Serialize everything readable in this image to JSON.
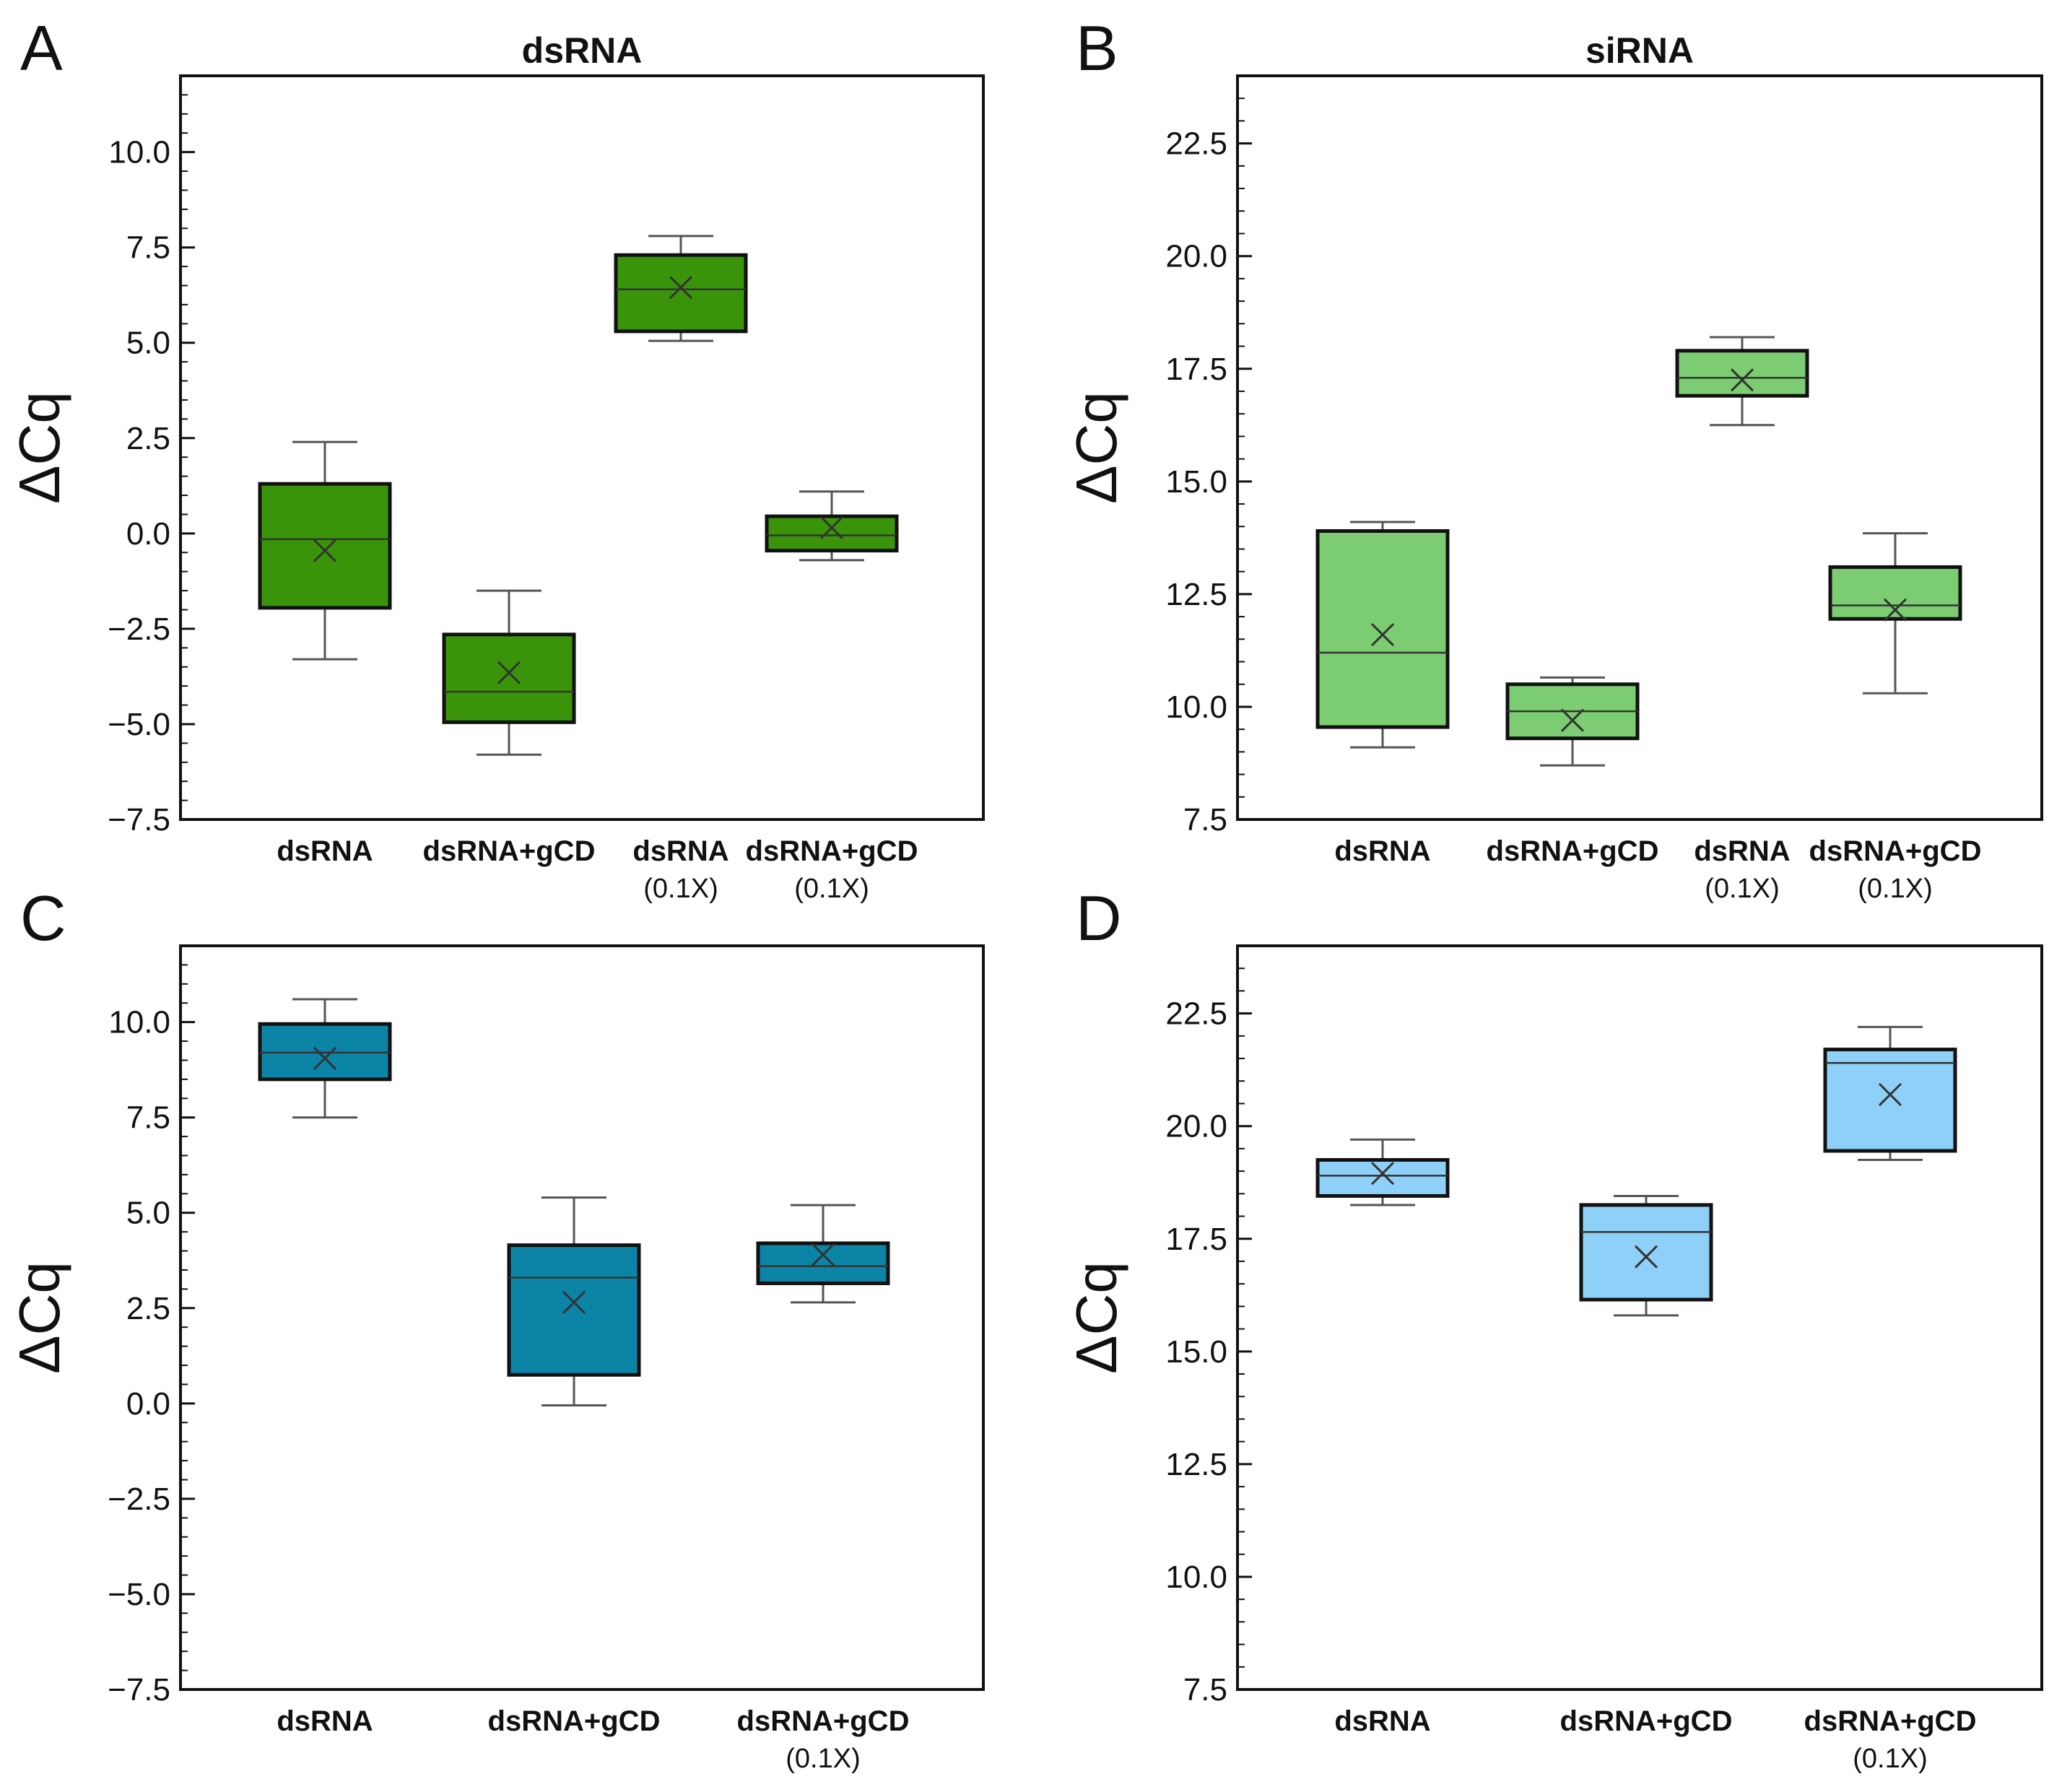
{
  "chart_data": [
    {
      "panel": "A",
      "type": "box",
      "title": "dsRNA",
      "ylabel": "ΔCq",
      "xlabel": "",
      "ylim": [
        -7.5,
        12
      ],
      "yticks": [
        -7.5,
        -5.0,
        -2.5,
        0.0,
        2.5,
        5.0,
        7.5,
        10.0
      ],
      "yticklabels": [
        "−7.5",
        "−5.0",
        "−2.5",
        "0.0",
        "2.5",
        "5.0",
        "7.5",
        "10.0"
      ],
      "color": "#3a940a",
      "categories": [
        {
          "label": "dsRNA",
          "sub": ""
        },
        {
          "label": "dsRNA+gCD",
          "sub": ""
        },
        {
          "label": "dsRNA",
          "sub": "(0.1X)"
        },
        {
          "label": "dsRNA+gCD",
          "sub": "(0.1X)"
        }
      ],
      "boxes": [
        {
          "min": -3.3,
          "q1": -1.95,
          "median": -0.15,
          "q3": 1.3,
          "max": 2.4,
          "mean": -0.45
        },
        {
          "min": -5.8,
          "q1": -4.95,
          "median": -4.15,
          "q3": -2.65,
          "max": -1.5,
          "mean": -3.65
        },
        {
          "min": 5.05,
          "q1": 5.3,
          "median": 6.4,
          "q3": 7.3,
          "max": 7.8,
          "mean": 6.45
        },
        {
          "min": -0.7,
          "q1": -0.45,
          "median": -0.05,
          "q3": 0.45,
          "max": 1.1,
          "mean": 0.15
        }
      ]
    },
    {
      "panel": "B",
      "type": "box",
      "title": "siRNA",
      "ylabel": "ΔCq",
      "xlabel": "",
      "ylim": [
        7.5,
        24
      ],
      "yticks": [
        7.5,
        10.0,
        12.5,
        15.0,
        17.5,
        20.0,
        22.5
      ],
      "yticklabels": [
        "7.5",
        "10.0",
        "12.5",
        "15.0",
        "17.5",
        "20.0",
        "22.5"
      ],
      "color": "#7ccc72",
      "categories": [
        {
          "label": "dsRNA",
          "sub": ""
        },
        {
          "label": "dsRNA+gCD",
          "sub": ""
        },
        {
          "label": "dsRNA",
          "sub": "(0.1X)"
        },
        {
          "label": "dsRNA+gCD",
          "sub": "(0.1X)"
        }
      ],
      "boxes": [
        {
          "min": 9.1,
          "q1": 9.55,
          "median": 11.2,
          "q3": 13.9,
          "max": 14.1,
          "mean": 11.6
        },
        {
          "min": 8.7,
          "q1": 9.3,
          "median": 9.9,
          "q3": 10.5,
          "max": 10.65,
          "mean": 9.7
        },
        {
          "min": 16.25,
          "q1": 16.9,
          "median": 17.3,
          "q3": 17.9,
          "max": 18.2,
          "mean": 17.25
        },
        {
          "min": 10.3,
          "q1": 11.95,
          "median": 12.25,
          "q3": 13.1,
          "max": 13.85,
          "mean": 12.15
        }
      ]
    },
    {
      "panel": "C",
      "type": "box",
      "title": "",
      "ylabel": "ΔCq",
      "xlabel": "",
      "ylim": [
        -7.5,
        12
      ],
      "yticks": [
        -7.5,
        -5.0,
        -2.5,
        0.0,
        2.5,
        5.0,
        7.5,
        10.0
      ],
      "yticklabels": [
        "−7.5",
        "−5.0",
        "−2.5",
        "0.0",
        "2.5",
        "5.0",
        "7.5",
        "10.0"
      ],
      "color": "#0b84a5",
      "categories": [
        {
          "label": "dsRNA",
          "sub": ""
        },
        {
          "label": "dsRNA+gCD",
          "sub": ""
        },
        {
          "label": "dsRNA+gCD",
          "sub": "(0.1X)"
        }
      ],
      "boxes": [
        {
          "min": 7.5,
          "q1": 8.5,
          "median": 9.2,
          "q3": 9.95,
          "max": 10.6,
          "mean": 9.05
        },
        {
          "min": -0.05,
          "q1": 0.75,
          "median": 3.3,
          "q3": 4.15,
          "max": 5.4,
          "mean": 2.65
        },
        {
          "min": 2.65,
          "q1": 3.15,
          "median": 3.6,
          "q3": 4.2,
          "max": 5.2,
          "mean": 3.9
        }
      ]
    },
    {
      "panel": "D",
      "type": "box",
      "title": "",
      "ylabel": "ΔCq",
      "xlabel": "",
      "ylim": [
        7.5,
        24
      ],
      "yticks": [
        7.5,
        10.0,
        12.5,
        15.0,
        17.5,
        20.0,
        22.5
      ],
      "yticklabels": [
        "7.5",
        "10.0",
        "12.5",
        "15.0",
        "17.5",
        "20.0",
        "22.5"
      ],
      "color": "#8fd0f8",
      "categories": [
        {
          "label": "dsRNA",
          "sub": ""
        },
        {
          "label": "dsRNA+gCD",
          "sub": ""
        },
        {
          "label": "dsRNA+gCD",
          "sub": "(0.1X)"
        }
      ],
      "boxes": [
        {
          "min": 18.25,
          "q1": 18.45,
          "median": 18.9,
          "q3": 19.25,
          "max": 19.7,
          "mean": 18.95
        },
        {
          "min": 15.8,
          "q1": 16.15,
          "median": 17.65,
          "q3": 18.25,
          "max": 18.45,
          "mean": 17.1
        },
        {
          "min": 19.25,
          "q1": 19.45,
          "median": 21.4,
          "q3": 21.7,
          "max": 22.2,
          "mean": 20.7
        }
      ]
    }
  ]
}
